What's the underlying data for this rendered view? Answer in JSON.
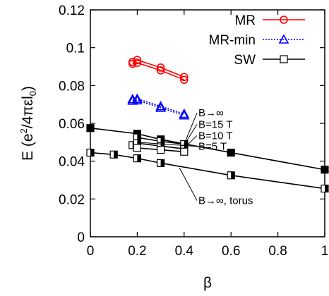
{
  "chart_data": {
    "type": "line",
    "xlabel": "β",
    "ylabel_parts": [
      "E (e",
      "2",
      "/4πεl",
      "0",
      ")"
    ],
    "xlim": [
      0,
      1
    ],
    "ylim": [
      0,
      0.12
    ],
    "xticks": [
      "0",
      "0.2",
      "0.4",
      "0.6",
      "0.8",
      "1"
    ],
    "yticks": [
      "0",
      "0.02",
      "0.04",
      "0.06",
      "0.08",
      "0.1",
      "0.12"
    ],
    "xtick_values": [
      0,
      0.2,
      0.4,
      0.6,
      0.8,
      1
    ],
    "ytick_values": [
      0,
      0.02,
      0.04,
      0.06,
      0.08,
      0.1,
      0.12
    ],
    "legend_position": "top-right",
    "legend": [
      "MR",
      "MR-min",
      "SW"
    ],
    "colors": {
      "MR": "#ff0000",
      "MR-min": "#0000ff",
      "SW": "#000000"
    },
    "series": [
      {
        "name": "MR",
        "group": "MR",
        "marker": "circle",
        "style": "solid",
        "x": [
          0.18,
          0.2,
          0.3,
          0.4
        ],
        "y": [
          0.0925,
          0.0935,
          0.0895,
          0.0845
        ]
      },
      {
        "name": "MR",
        "group": "MR",
        "marker": "circle",
        "style": "solid",
        "x": [
          0.18,
          0.2,
          0.3,
          0.4
        ],
        "y": [
          0.0915,
          0.092,
          0.088,
          0.083
        ]
      },
      {
        "name": "MR-min",
        "group": "MR-min",
        "marker": "triangle",
        "style": "dotted",
        "x": [
          0.18,
          0.2,
          0.3,
          0.4
        ],
        "y": [
          0.0728,
          0.073,
          0.069,
          0.065
        ]
      },
      {
        "name": "MR-min",
        "group": "MR-min",
        "marker": "triangle",
        "style": "dotted",
        "x": [
          0.18,
          0.2,
          0.3,
          0.4
        ],
        "y": [
          0.072,
          0.0722,
          0.0682,
          0.0642
        ]
      },
      {
        "name": "B→∞",
        "group": "SW",
        "marker": "square-filled",
        "style": "solid",
        "x": [
          0,
          0.2,
          0.3,
          0.6,
          1
        ],
        "y": [
          0.0575,
          0.0545,
          0.0515,
          0.0445,
          0.0355
        ]
      },
      {
        "name": "B=15 T",
        "group": "SW",
        "marker": "square-half",
        "style": "solid",
        "x": [
          0.2,
          0.3,
          0.4
        ],
        "y": [
          0.0525,
          0.0505,
          0.049
        ]
      },
      {
        "name": "B=10 T",
        "group": "SW",
        "marker": "square-half",
        "style": "solid",
        "x": [
          0.18,
          0.2,
          0.3,
          0.4
        ],
        "y": [
          0.0485,
          0.0495,
          0.048,
          0.0465
        ]
      },
      {
        "name": "B=5 T",
        "group": "SW",
        "marker": "square-open",
        "style": "solid",
        "x": [
          0.2,
          0.3,
          0.4
        ],
        "y": [
          0.047,
          0.046,
          0.045
        ]
      },
      {
        "name": "B→∞, torus",
        "group": "SW",
        "marker": "square-half",
        "style": "solid",
        "x": [
          0,
          0.1,
          0.2,
          0.3,
          0.6,
          1
        ],
        "y": [
          0.0445,
          0.0435,
          0.0415,
          0.039,
          0.0325,
          0.0255
        ]
      }
    ],
    "annotations": [
      {
        "text": "B→∞",
        "x": 0.455,
        "y": 0.0655,
        "tx": 0.4,
        "ty": 0.049
      },
      {
        "text": "B=15 T",
        "x": 0.455,
        "y": 0.0595,
        "tx": 0.4,
        "ty": 0.0485
      },
      {
        "text": "B=10 T",
        "x": 0.455,
        "y": 0.0535,
        "tx": 0.4,
        "ty": 0.047
      },
      {
        "text": "B=5 T",
        "x": 0.455,
        "y": 0.0478,
        "tx": 0.2,
        "ty": 0.05
      },
      {
        "text": "B→∞, torus",
        "x": 0.455,
        "y": 0.0192,
        "tx": 0.38,
        "ty": 0.0365
      }
    ]
  }
}
